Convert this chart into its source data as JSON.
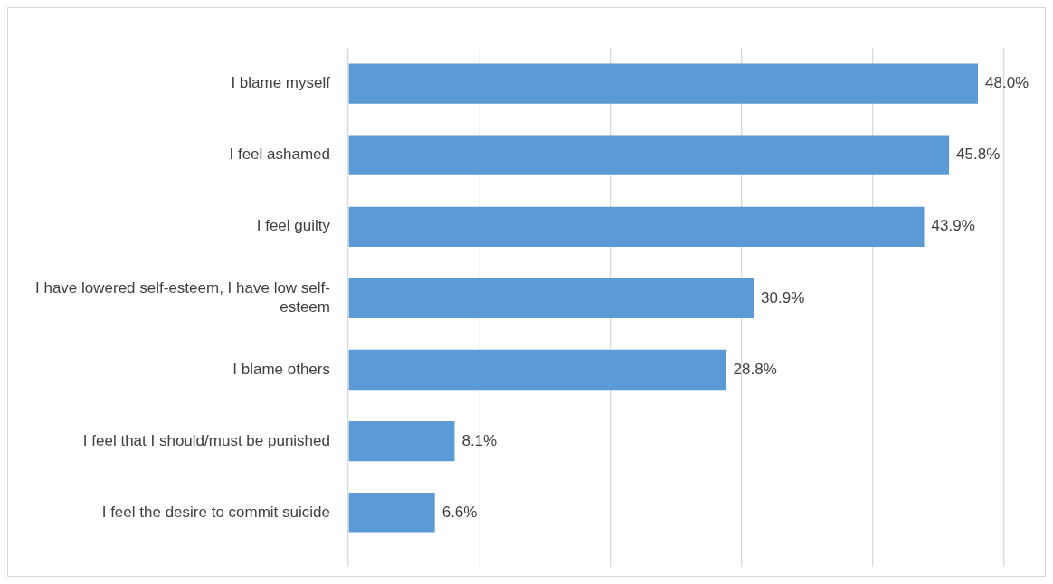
{
  "chart_data": {
    "type": "bar",
    "orientation": "horizontal",
    "categories": [
      "I blame myself",
      "I feel ashamed",
      "I feel guilty",
      "I have lowered self-esteem, I have low self-esteem",
      "I blame others",
      "I feel that I should/must be punished",
      "I feel the desire to commit suicide"
    ],
    "values": [
      48.0,
      45.8,
      43.9,
      30.9,
      28.8,
      8.1,
      6.6
    ],
    "value_labels": [
      "48.0%",
      "45.8%",
      "43.9%",
      "30.9%",
      "28.8%",
      "8.1%",
      "6.6%"
    ],
    "color": "#5b9bd5",
    "xlim": [
      0,
      50
    ],
    "xticks": [
      {
        "value": 0,
        "label": null
      },
      {
        "value": 10,
        "label": null
      },
      {
        "value": 20,
        "label": null
      },
      {
        "value": 30,
        "label": null
      },
      {
        "value": 40,
        "label": null
      },
      {
        "value": 50,
        "label": null
      }
    ],
    "grid": "x",
    "tick_labels": "y",
    "legend": false
  }
}
